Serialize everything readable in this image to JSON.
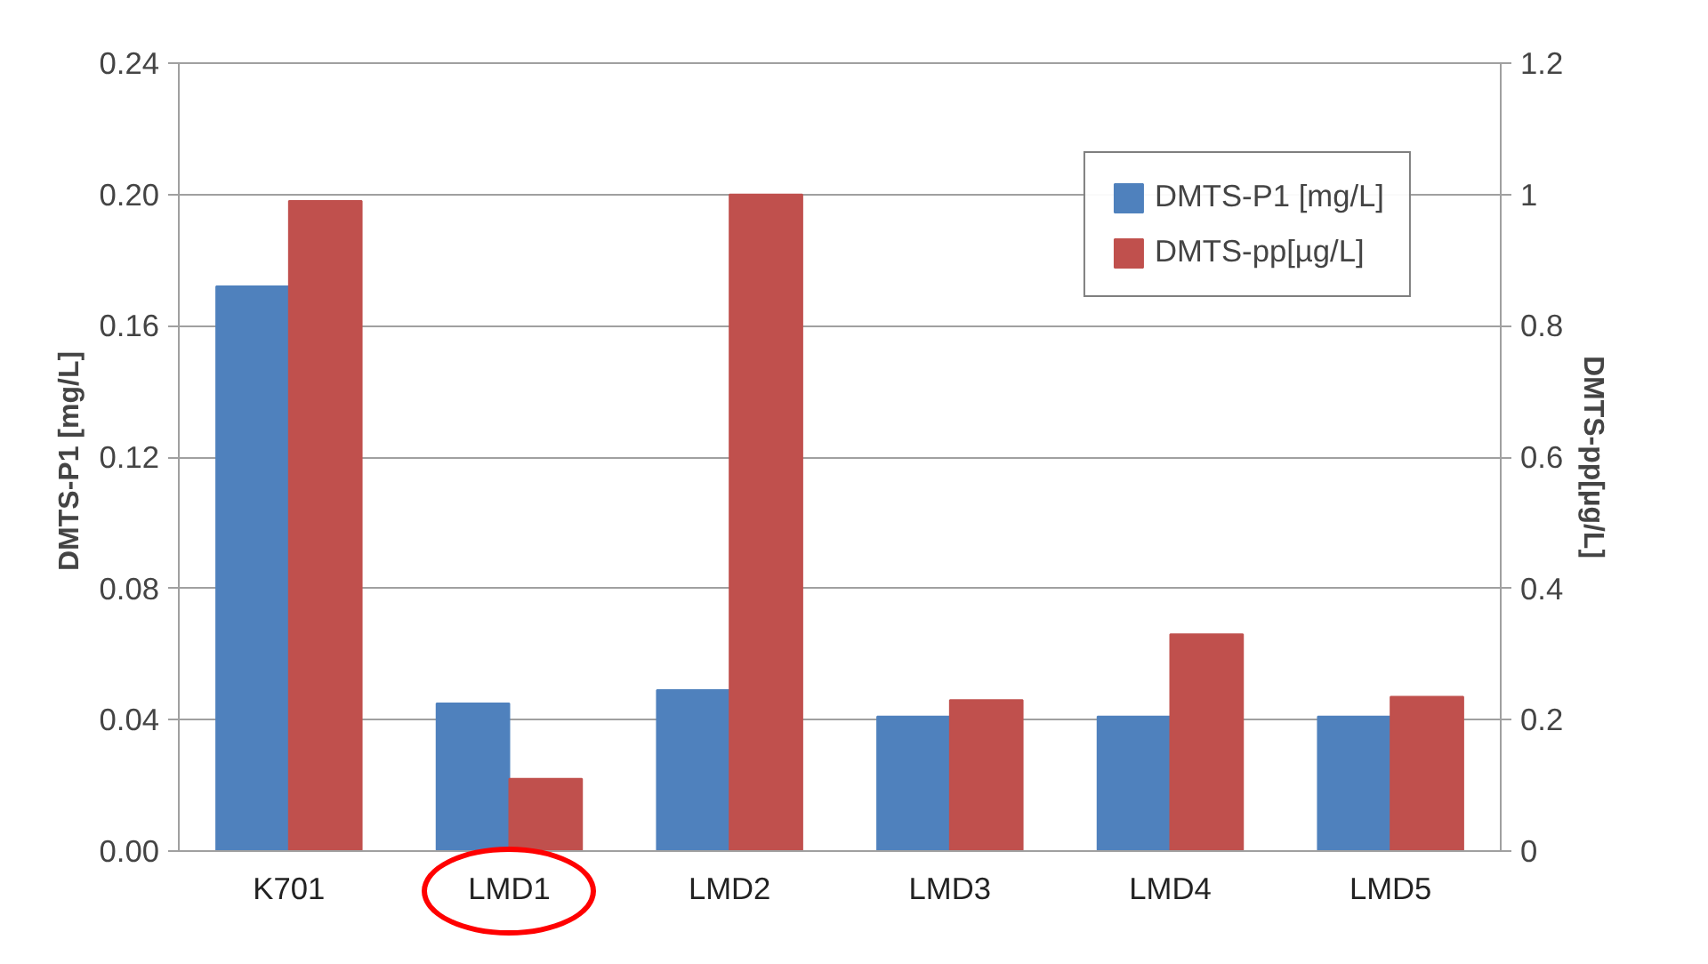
{
  "chart_data": {
    "type": "bar",
    "categories": [
      "K701",
      "LMD1",
      "LMD2",
      "LMD3",
      "LMD4",
      "LMD5"
    ],
    "series": [
      {
        "name": "DMTS-P1 [mg/L]",
        "color": "#4f81bd",
        "values": [
          0.172,
          0.045,
          0.049,
          0.041,
          0.041,
          0.041
        ]
      },
      {
        "name": "DMTS-pp[µg/L]",
        "color": "#c0504d",
        "axis": "y2",
        "values": [
          0.99,
          0.11,
          1.0,
          0.23,
          0.33,
          0.235
        ]
      }
    ],
    "ylabel": "DMTS-P1  [mg/L]",
    "y2label": "DMTS-pp[µg/L]",
    "ylim": [
      0,
      0.24
    ],
    "yticks": [
      {
        "value": 0,
        "label": "0.00"
      },
      {
        "value": 0.04,
        "label": "0.04"
      },
      {
        "value": 0.08,
        "label": "0.08"
      },
      {
        "value": 0.12,
        "label": "0.12"
      },
      {
        "value": 0.16,
        "label": "0.16"
      },
      {
        "value": 0.2,
        "label": "0.20"
      },
      {
        "value": 0.24,
        "label": "0.24"
      }
    ],
    "y2lim": [
      0,
      1.2
    ],
    "y2ticks": [
      0,
      0.2,
      0.4,
      0.6,
      0.8,
      1,
      1.2
    ],
    "grid": "y",
    "legend": "top right"
  }
}
